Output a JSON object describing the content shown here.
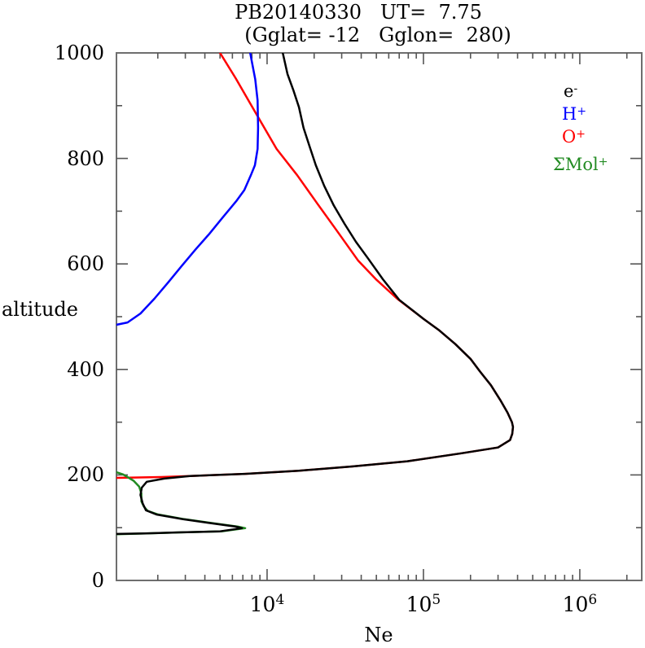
{
  "title": {
    "line1": "PB20140330   UT=  7.75",
    "line2": "(Gglat= -12   Gglon=  280)"
  },
  "axes": {
    "ylabel": "altitude",
    "xlabel": "Ne",
    "y_tick_labels": [
      {
        "value": 0,
        "label": "0"
      },
      {
        "value": 200,
        "label": "200"
      },
      {
        "value": 400,
        "label": "400"
      },
      {
        "value": 600,
        "label": "600"
      },
      {
        "value": 800,
        "label": "800"
      },
      {
        "value": 1000,
        "label": "1000"
      }
    ],
    "x_tick_labels": [
      {
        "value": 10000,
        "mantissa": "10",
        "exponent": "4"
      },
      {
        "value": 100000,
        "mantissa": "10",
        "exponent": "5"
      },
      {
        "value": 1000000,
        "mantissa": "10",
        "exponent": "6"
      }
    ]
  },
  "legend": [
    {
      "base": "e",
      "sup": "-",
      "color": "#000000"
    },
    {
      "base": "H",
      "sup": "+",
      "color": "#0000ff"
    },
    {
      "base": "O",
      "sup": "+",
      "color": "#ff0000"
    },
    {
      "base": "ΣMol",
      "sup": "+",
      "color": "#228b22"
    }
  ],
  "colors": {
    "frame": "#6e6e6e",
    "tick": "#555555",
    "electron": "#000000",
    "h_plus": "#0000ff",
    "o_plus": "#ff0000",
    "mol_plus": "#228b22"
  },
  "chart_data": {
    "type": "line",
    "title": "PB20140330 UT= 7.75 (Gglat= -12 Gglon= 280)",
    "xlabel": "Ne",
    "ylabel": "altitude",
    "x_axis": {
      "scale": "log",
      "min": 1088,
      "max": 2490000,
      "major_ticks": [
        10000,
        100000,
        1000000
      ],
      "minor_ticks": "2-9 per decade"
    },
    "y_axis": {
      "scale": "linear",
      "min": 0,
      "max": 1000,
      "major_ticks": [
        0,
        200,
        400,
        600,
        800,
        1000
      ],
      "minor_tick_step": 100
    },
    "grid": false,
    "legend_position": "top-right-inside",
    "series": [
      {
        "name": "O+",
        "color": "#ff0000",
        "points_ne_alt": [
          [
            5000,
            1000
          ],
          [
            6300,
            952
          ],
          [
            8700,
            880
          ],
          [
            11500,
            818
          ],
          [
            15600,
            768
          ],
          [
            21000,
            714
          ],
          [
            28400,
            660
          ],
          [
            38300,
            606
          ],
          [
            50000,
            570
          ],
          [
            68000,
            534
          ],
          [
            100000,
            496
          ],
          [
            125000,
            475
          ],
          [
            160000,
            448
          ],
          [
            200000,
            420
          ],
          [
            230000,
            396
          ],
          [
            270000,
            370
          ],
          [
            310000,
            342
          ],
          [
            345000,
            318
          ],
          [
            368000,
            300
          ],
          [
            374000,
            291
          ],
          [
            370000,
            278
          ],
          [
            358000,
            266
          ],
          [
            300000,
            252
          ],
          [
            175000,
            241
          ],
          [
            79000,
            226
          ],
          [
            35000,
            216
          ],
          [
            16000,
            208
          ],
          [
            7200,
            202
          ],
          [
            3200,
            198
          ],
          [
            2100,
            196
          ],
          [
            1400,
            195
          ],
          [
            950,
            194
          ]
        ]
      },
      {
        "name": "SigmaMol+",
        "color": "#228b22",
        "points_ne_alt": [
          [
            950,
            211
          ],
          [
            1200,
            201
          ],
          [
            1400,
            189
          ],
          [
            1520,
            178
          ],
          [
            1570,
            165
          ],
          [
            1570,
            150
          ],
          [
            1630,
            140
          ],
          [
            1720,
            132
          ],
          [
            2010,
            125
          ],
          [
            2960,
            116
          ],
          [
            4620,
            108
          ],
          [
            6500,
            102
          ],
          [
            7250,
            99
          ],
          [
            5100,
            93
          ],
          [
            2760,
            91
          ],
          [
            1700,
            89
          ],
          [
            950,
            87
          ]
        ]
      },
      {
        "name": "H+",
        "color": "#0000ff",
        "points_ne_alt": [
          [
            7800,
            1000
          ],
          [
            8400,
            950
          ],
          [
            8700,
            910
          ],
          [
            8760,
            858
          ],
          [
            8700,
            818
          ],
          [
            8360,
            787
          ],
          [
            7870,
            768
          ],
          [
            7150,
            740
          ],
          [
            6350,
            719
          ],
          [
            5200,
            688
          ],
          [
            4270,
            657
          ],
          [
            3480,
            627
          ],
          [
            2840,
            596
          ],
          [
            2330,
            565
          ],
          [
            1900,
            534
          ],
          [
            1550,
            506
          ],
          [
            1280,
            489
          ],
          [
            950,
            481
          ]
        ]
      },
      {
        "name": "e-",
        "color": "#000000",
        "points_ne_alt": [
          [
            12600,
            1000
          ],
          [
            13500,
            960
          ],
          [
            14700,
            930
          ],
          [
            16000,
            897
          ],
          [
            17100,
            858
          ],
          [
            18700,
            823
          ],
          [
            20500,
            787
          ],
          [
            23200,
            748
          ],
          [
            26700,
            711
          ],
          [
            31300,
            676
          ],
          [
            37000,
            642
          ],
          [
            44300,
            610
          ],
          [
            55000,
            571
          ],
          [
            70000,
            532
          ],
          [
            100000,
            496
          ],
          [
            125000,
            475
          ],
          [
            160000,
            448
          ],
          [
            200000,
            420
          ],
          [
            230000,
            396
          ],
          [
            270000,
            370
          ],
          [
            310000,
            342
          ],
          [
            345000,
            318
          ],
          [
            368000,
            300
          ],
          [
            374000,
            291
          ],
          [
            370000,
            278
          ],
          [
            358000,
            266
          ],
          [
            300000,
            252
          ],
          [
            175000,
            241
          ],
          [
            79000,
            226
          ],
          [
            35000,
            216
          ],
          [
            16000,
            208
          ],
          [
            7200,
            202
          ],
          [
            3200,
            198
          ],
          [
            2200,
            193
          ],
          [
            1700,
            187
          ],
          [
            1580,
            176
          ],
          [
            1550,
            162
          ],
          [
            1600,
            146
          ],
          [
            1680,
            133
          ],
          [
            1960,
            125
          ],
          [
            2900,
            116
          ],
          [
            4500,
            108
          ],
          [
            6300,
            102
          ],
          [
            6900,
            99
          ],
          [
            5000,
            93
          ],
          [
            2700,
            91
          ],
          [
            1650,
            89
          ],
          [
            950,
            88
          ]
        ]
      }
    ]
  }
}
